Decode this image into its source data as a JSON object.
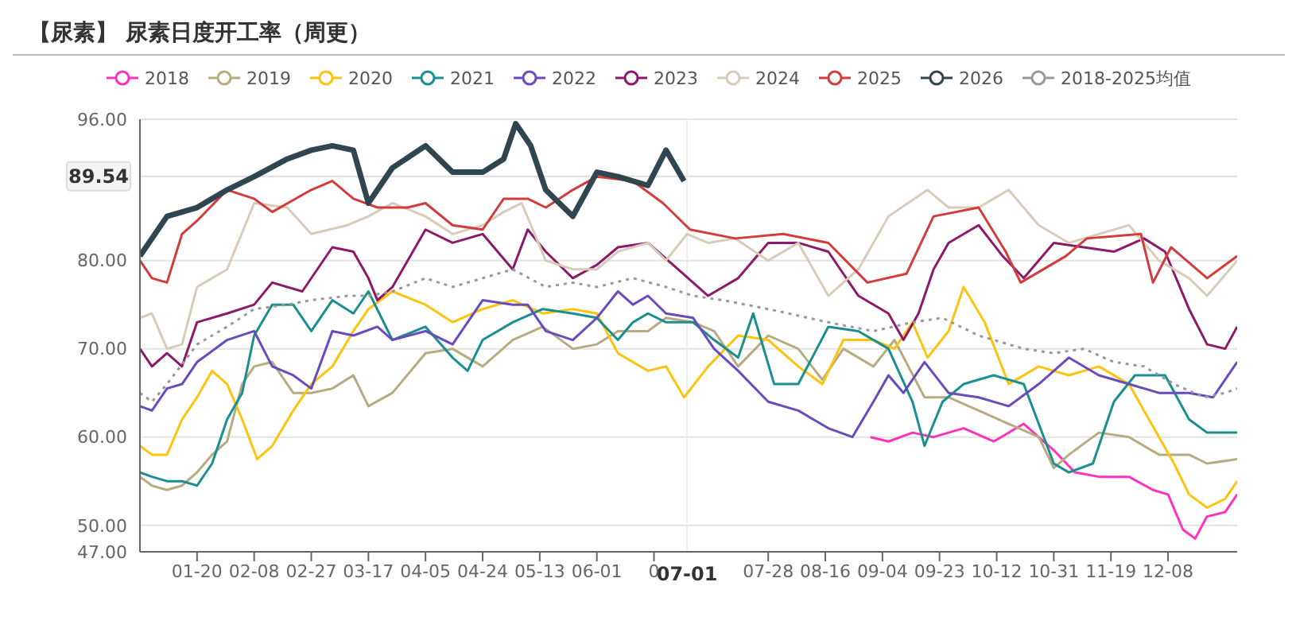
{
  "chart_data": {
    "type": "line",
    "title": "【尿素】 尿素日度开工率（周更）",
    "xlim": [
      "--01-01",
      "--12-31"
    ],
    "xticks": [
      {
        "value": "--01-20",
        "label": "01-20"
      },
      {
        "value": "--02-08",
        "label": "02-08"
      },
      {
        "value": "--02-27",
        "label": "02-27"
      },
      {
        "value": "--03-17",
        "label": "03-17"
      },
      {
        "value": "--04-05",
        "label": "04-05"
      },
      {
        "value": "--04-24",
        "label": "04-24"
      },
      {
        "value": "--05-13",
        "label": "05-13"
      },
      {
        "value": "--06-01",
        "label": "06-01"
      },
      {
        "value": "--06-20",
        "label": "0"
      },
      {
        "value": "--07-28",
        "label": "07-28"
      },
      {
        "value": "--08-16",
        "label": "08-16"
      },
      {
        "value": "--09-04",
        "label": "09-04"
      },
      {
        "value": "--09-23",
        "label": "09-23"
      },
      {
        "value": "--10-12",
        "label": "10-12"
      },
      {
        "value": "--10-31",
        "label": "10-31"
      },
      {
        "value": "--11-19",
        "label": "11-19"
      },
      {
        "value": "--12-08",
        "label": "12-08"
      }
    ],
    "ylim": [
      47,
      96
    ],
    "yticks": [
      {
        "value": 47,
        "label": "47.00"
      },
      {
        "value": 50,
        "label": "50.00"
      },
      {
        "value": 60,
        "label": "60.00"
      },
      {
        "value": 70,
        "label": "70.00"
      },
      {
        "value": 80,
        "label": "80.00"
      },
      {
        "value": 96,
        "label": "96.00"
      }
    ],
    "grid": "y",
    "legend": "top",
    "marker": "none",
    "ref_lines": [
      {
        "axis": "y",
        "value": 89.54,
        "label": "89.54",
        "color": "#dddddd"
      },
      {
        "axis": "x",
        "value": "--07-01",
        "label": "07-01",
        "color": "#eeeeee"
      }
    ],
    "series": [
      {
        "name": "2018",
        "color": "#ff33bb",
        "x": [
          "--08-31",
          "--09-06",
          "--09-14",
          "--09-21",
          "--10-01",
          "--10-11",
          "--10-21",
          "--10-31",
          "--11-07",
          "--11-15",
          "--11-25",
          "--12-03",
          "--12-08",
          "--12-13",
          "--12-17",
          "--12-21",
          "--12-27",
          "--12-31"
        ],
        "values": [
          60,
          59.5,
          60.5,
          60,
          61,
          59.5,
          61.5,
          58.5,
          56,
          55.5,
          55.5,
          54,
          53.5,
          49.5,
          48.5,
          51,
          51.5,
          53.5
        ]
      },
      {
        "name": "2019",
        "color": "#b8ab80",
        "x": [
          "--01-01",
          "--01-05",
          "--01-10",
          "--01-15",
          "--01-20",
          "--01-25",
          "--01-30",
          "--02-04",
          "--02-08",
          "--02-14",
          "--02-21",
          "--02-27",
          "--03-05",
          "--03-12",
          "--03-17",
          "--03-25",
          "--04-05",
          "--04-14",
          "--04-24",
          "--05-04",
          "--05-14",
          "--05-24",
          "--06-01",
          "--06-08",
          "--06-18",
          "--06-24",
          "--07-03",
          "--07-10",
          "--07-18",
          "--07-28",
          "--08-07",
          "--08-15",
          "--08-22",
          "--09-01",
          "--09-08",
          "--09-18",
          "--09-26",
          "--10-06",
          "--10-16",
          "--10-26",
          "--10-31",
          "--11-05",
          "--11-15",
          "--11-25",
          "--12-05",
          "--12-15",
          "--12-21",
          "--12-31"
        ],
        "values": [
          55.5,
          54.5,
          54,
          54.5,
          56,
          58,
          59.5,
          66,
          68,
          68.5,
          65,
          65,
          65.5,
          67,
          63.5,
          65,
          69.5,
          70,
          68,
          71,
          72.5,
          70,
          70.5,
          72,
          72,
          73.5,
          73,
          72,
          68,
          71.5,
          70,
          66.5,
          70,
          68,
          71,
          64.5,
          64.5,
          63,
          61.5,
          60,
          56.5,
          58,
          60.5,
          60,
          58,
          58,
          57,
          57.5
        ]
      },
      {
        "name": "2020",
        "color": "#fcc30f",
        "x": [
          "--01-01",
          "--01-05",
          "--01-10",
          "--01-15",
          "--01-20",
          "--01-25",
          "--01-30",
          "--02-04",
          "--02-09",
          "--02-14",
          "--02-21",
          "--02-27",
          "--03-05",
          "--03-12",
          "--03-17",
          "--03-25",
          "--04-05",
          "--04-14",
          "--04-24",
          "--05-04",
          "--05-14",
          "--05-24",
          "--06-01",
          "--06-08",
          "--06-18",
          "--06-24",
          "--06-30",
          "--07-08",
          "--07-18",
          "--07-28",
          "--08-07",
          "--08-15",
          "--08-22",
          "--09-01",
          "--09-08",
          "--09-14",
          "--09-19",
          "--09-26",
          "--10-01",
          "--10-08",
          "--10-16",
          "--10-26",
          "--11-05",
          "--11-15",
          "--11-25",
          "--12-05",
          "--12-10",
          "--12-15",
          "--12-21",
          "--12-27",
          "--12-31"
        ],
        "values": [
          59,
          58,
          58,
          62,
          64.5,
          67.5,
          66,
          62,
          57.5,
          59,
          63,
          66,
          68,
          72,
          74.5,
          76.5,
          75,
          73,
          74.5,
          75.5,
          74,
          74.5,
          74,
          69.5,
          67.5,
          68,
          64.5,
          68,
          71.5,
          71,
          68,
          66,
          71,
          71,
          70,
          73,
          69,
          72,
          77,
          73,
          66,
          68,
          67,
          68,
          66,
          60,
          57,
          53.5,
          52,
          53,
          55
        ]
      },
      {
        "name": "2021",
        "color": "#1b8f8f",
        "x": [
          "--01-01",
          "--01-05",
          "--01-10",
          "--01-15",
          "--01-20",
          "--01-25",
          "--01-30",
          "--02-04",
          "--02-08",
          "--02-14",
          "--02-21",
          "--02-27",
          "--03-05",
          "--03-12",
          "--03-17",
          "--03-25",
          "--04-05",
          "--04-14",
          "--04-19",
          "--04-24",
          "--05-04",
          "--05-14",
          "--05-24",
          "--06-01",
          "--06-08",
          "--06-13",
          "--06-18",
          "--06-24",
          "--07-03",
          "--07-10",
          "--07-18",
          "--07-23",
          "--07-30",
          "--08-07",
          "--08-17",
          "--08-27",
          "--09-06",
          "--09-14",
          "--09-18",
          "--09-24",
          "--10-01",
          "--10-11",
          "--10-21",
          "--10-31",
          "--11-05",
          "--11-13",
          "--11-20",
          "--11-27",
          "--12-07",
          "--12-15",
          "--12-21",
          "--12-31"
        ],
        "values": [
          56,
          55.5,
          55,
          55,
          54.5,
          57,
          62,
          65,
          71.5,
          75,
          75,
          72,
          75.5,
          74,
          76.5,
          71,
          72.5,
          69,
          67.5,
          71,
          73,
          74.5,
          74,
          73.5,
          71,
          73,
          74,
          73,
          73,
          71,
          69,
          74,
          66,
          66,
          72.5,
          72,
          70,
          64,
          59,
          64,
          66,
          67,
          66,
          57,
          56,
          57,
          64,
          67,
          67,
          62,
          60.5,
          60.5
        ]
      },
      {
        "name": "2022",
        "color": "#6a4bbd",
        "x": [
          "--01-01",
          "--01-05",
          "--01-10",
          "--01-15",
          "--01-20",
          "--01-30",
          "--02-08",
          "--02-14",
          "--02-21",
          "--02-27",
          "--03-05",
          "--03-12",
          "--03-20",
          "--03-25",
          "--04-05",
          "--04-14",
          "--04-24",
          "--05-04",
          "--05-09",
          "--05-15",
          "--05-24",
          "--06-01",
          "--06-08",
          "--06-13",
          "--06-18",
          "--06-24",
          "--07-03",
          "--07-10",
          "--07-18",
          "--07-28",
          "--08-07",
          "--08-17",
          "--08-25",
          "--09-01",
          "--09-06",
          "--09-11",
          "--09-18",
          "--09-26",
          "--10-06",
          "--10-16",
          "--10-26",
          "--11-05",
          "--11-15",
          "--11-25",
          "--12-05",
          "--12-15",
          "--12-23",
          "--12-31"
        ],
        "values": [
          63.5,
          63,
          65.5,
          66,
          68.5,
          71,
          72,
          68,
          67,
          65.5,
          72,
          71.5,
          72.5,
          71,
          72,
          70.5,
          75.5,
          75,
          75,
          72,
          71,
          73.5,
          76.5,
          75,
          76,
          74,
          73.5,
          70,
          67.5,
          64,
          63,
          61,
          60,
          64,
          67,
          65,
          68.5,
          65,
          64.5,
          63.5,
          66,
          69,
          67,
          66,
          65,
          65,
          64.5,
          68.5
        ]
      },
      {
        "name": "2023",
        "color": "#8c1a6a",
        "x": [
          "--01-01",
          "--01-05",
          "--01-10",
          "--01-15",
          "--01-20",
          "--01-30",
          "--02-08",
          "--02-14",
          "--02-24",
          "--03-05",
          "--03-12",
          "--03-17",
          "--03-20",
          "--03-25",
          "--04-05",
          "--04-14",
          "--04-24",
          "--05-04",
          "--05-09",
          "--05-15",
          "--05-24",
          "--06-01",
          "--06-08",
          "--06-18",
          "--06-28",
          "--07-08",
          "--07-18",
          "--07-28",
          "--08-07",
          "--08-17",
          "--08-27",
          "--09-06",
          "--09-11",
          "--09-16",
          "--09-21",
          "--09-26",
          "--10-06",
          "--10-14",
          "--10-21",
          "--10-31",
          "--11-10",
          "--11-20",
          "--11-30",
          "--12-07",
          "--12-15",
          "--12-21",
          "--12-27",
          "--12-31"
        ],
        "values": [
          70,
          68,
          69.5,
          68,
          73,
          74,
          75,
          77.5,
          76.5,
          81.5,
          81,
          78,
          75.5,
          77,
          83.5,
          82,
          83,
          79,
          83.5,
          81,
          78,
          79.5,
          81.5,
          82,
          79,
          76,
          78,
          82,
          82,
          81,
          76,
          74,
          71,
          74,
          79,
          82,
          84,
          80.5,
          78,
          82,
          81.5,
          81,
          82.5,
          81,
          74.5,
          70.5,
          70,
          72.5
        ]
      },
      {
        "name": "2024",
        "color": "#d8ccb8",
        "x": [
          "--01-01",
          "--01-05",
          "--01-10",
          "--01-15",
          "--01-20",
          "--01-30",
          "--02-08",
          "--02-19",
          "--02-27",
          "--03-10",
          "--03-17",
          "--03-25",
          "--04-05",
          "--04-14",
          "--04-24",
          "--05-01",
          "--05-07",
          "--05-15",
          "--05-24",
          "--06-01",
          "--06-08",
          "--06-18",
          "--06-24",
          "--07-01",
          "--07-08",
          "--07-17",
          "--07-28",
          "--08-07",
          "--08-17",
          "--08-27",
          "--09-06",
          "--09-19",
          "--09-26",
          "--10-06",
          "--10-16",
          "--10-26",
          "--11-05",
          "--11-15",
          "--11-25",
          "--12-05",
          "--12-15",
          "--12-21",
          "--12-31"
        ],
        "values": [
          73.5,
          74,
          70,
          70.5,
          77,
          79,
          86.5,
          86,
          83,
          84,
          85,
          86.5,
          85,
          83,
          84,
          85.5,
          86.5,
          80,
          79,
          79,
          81,
          82,
          80,
          83,
          82,
          82.5,
          80,
          82,
          76,
          79,
          85,
          88,
          86,
          86,
          88,
          84,
          82,
          83,
          84,
          80,
          78,
          76,
          80
        ]
      },
      {
        "name": "2025",
        "color": "#d23c3c",
        "x": [
          "--01-01",
          "--01-05",
          "--01-10",
          "--01-15",
          "--01-20",
          "--01-30",
          "--02-08",
          "--02-14",
          "--02-27",
          "--03-05",
          "--03-12",
          "--03-20",
          "--03-30",
          "--04-05",
          "--04-14",
          "--04-24",
          "--05-01",
          "--05-09",
          "--05-15",
          "--05-24",
          "--06-01",
          "--06-13",
          "--06-23",
          "--07-02",
          "--07-17",
          "--08-02",
          "--08-17",
          "--08-30",
          "--09-12",
          "--09-21",
          "--10-06",
          "--10-15",
          "--10-20",
          "--11-04",
          "--11-11",
          "--11-29",
          "--12-03",
          "--12-09",
          "--12-21",
          "--12-31"
        ],
        "values": [
          80,
          78,
          77.5,
          83,
          84.5,
          88,
          87,
          85.5,
          88,
          89,
          87,
          86,
          86,
          86.5,
          84,
          83.5,
          87,
          87,
          86,
          88,
          89.5,
          89,
          86.5,
          83.5,
          82.5,
          83,
          82,
          77.5,
          78.5,
          85,
          86,
          81,
          77.5,
          80.5,
          82.5,
          83,
          77.5,
          81.5,
          78,
          80.5
        ]
      },
      {
        "name": "2026",
        "color": "#2f4550",
        "x": [
          "--01-01",
          "--01-10",
          "--01-20",
          "--01-30",
          "--02-08",
          "--02-19",
          "--02-27",
          "--03-05",
          "--03-12",
          "--03-17",
          "--03-25",
          "--04-05",
          "--04-14",
          "--04-24",
          "--05-01",
          "--05-05",
          "--05-10",
          "--05-15",
          "--05-24",
          "--06-01",
          "--06-08",
          "--06-18",
          "--06-24",
          "--06-30"
        ],
        "values": [
          80.5,
          85,
          86,
          88,
          89.5,
          91.5,
          92.5,
          93,
          92.5,
          86.5,
          90.5,
          93,
          90,
          90,
          91.5,
          95.5,
          93,
          88,
          85,
          90,
          89.5,
          88.5,
          92.5,
          89
        ]
      },
      {
        "name": "2018-2025均值",
        "color": "#999999",
        "line_style": "dotted",
        "x": [
          "--01-01",
          "--01-05",
          "--01-10",
          "--01-20",
          "--01-30",
          "--02-08",
          "--02-19",
          "--02-27",
          "--03-10",
          "--03-17",
          "--03-25",
          "--04-05",
          "--04-14",
          "--04-24",
          "--05-04",
          "--05-15",
          "--05-24",
          "--06-01",
          "--06-13",
          "--06-24",
          "--07-03",
          "--07-13",
          "--07-28",
          "--08-17",
          "--09-01",
          "--09-14",
          "--09-24",
          "--10-06",
          "--10-21",
          "--10-31",
          "--11-10",
          "--11-20",
          "--11-30",
          "--12-10",
          "--12-20",
          "--12-27",
          "--12-31"
        ],
        "values": [
          65,
          64,
          66,
          70.5,
          72.5,
          74.5,
          75,
          75.5,
          76,
          76,
          76.5,
          78,
          77,
          78,
          79,
          77,
          77.5,
          77,
          78,
          77,
          76,
          75.5,
          74.5,
          73,
          72,
          73,
          73.5,
          71.5,
          70,
          69.5,
          70,
          68.5,
          68,
          66,
          64.5,
          65,
          65.5
        ]
      }
    ]
  }
}
